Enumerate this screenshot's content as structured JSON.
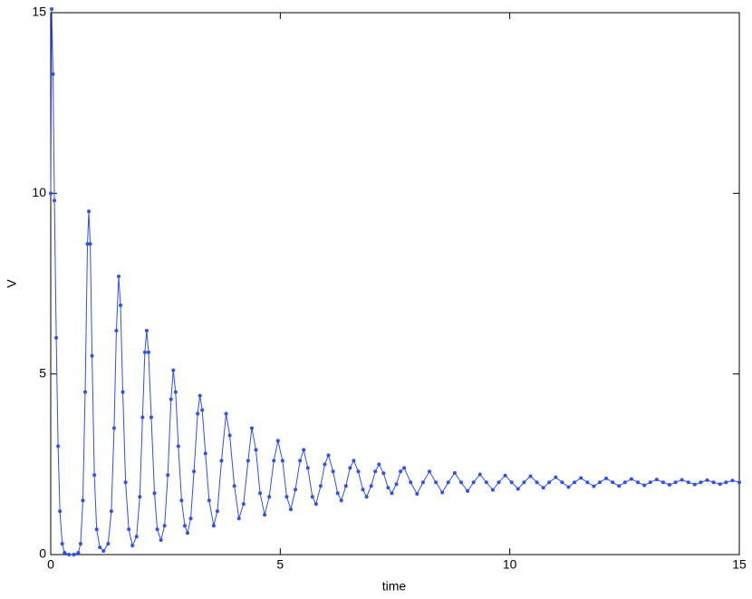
{
  "chart_data": {
    "type": "line",
    "xlabel": "time",
    "ylabel": "V",
    "color": "#2f4ff0",
    "x": [
      0,
      0.02,
      0.05,
      0.08,
      0.12,
      0.16,
      0.2,
      0.25,
      0.3,
      0.4,
      0.5,
      0.6,
      0.65,
      0.7,
      0.75,
      0.8,
      0.83,
      0.86,
      0.9,
      0.95,
      1.0,
      1.07,
      1.15,
      1.25,
      1.32,
      1.38,
      1.43,
      1.48,
      1.52,
      1.57,
      1.63,
      1.7,
      1.78,
      1.87,
      1.94,
      2.0,
      2.05,
      2.09,
      2.13,
      2.19,
      2.26,
      2.32,
      2.4,
      2.48,
      2.55,
      2.62,
      2.67,
      2.72,
      2.78,
      2.85,
      2.92,
      2.98,
      3.05,
      3.12,
      3.2,
      3.25,
      3.3,
      3.37,
      3.45,
      3.55,
      3.63,
      3.72,
      3.82,
      3.9,
      4.0,
      4.1,
      4.2,
      4.3,
      4.38,
      4.47,
      4.56,
      4.66,
      4.76,
      4.86,
      4.95,
      5.05,
      5.14,
      5.23,
      5.33,
      5.43,
      5.51,
      5.6,
      5.7,
      5.78,
      5.88,
      5.97,
      6.05,
      6.15,
      6.25,
      6.33,
      6.43,
      6.52,
      6.6,
      6.7,
      6.8,
      6.88,
      6.98,
      7.07,
      7.15,
      7.25,
      7.35,
      7.43,
      7.53,
      7.62,
      7.7,
      7.84,
      7.98,
      8.11,
      8.25,
      8.39,
      8.53,
      8.66,
      8.8,
      8.94,
      9.08,
      9.21,
      9.35,
      9.49,
      9.63,
      9.76,
      9.9,
      10.04,
      10.18,
      10.31,
      10.45,
      10.59,
      10.73,
      10.86,
      11.0,
      11.14,
      11.28,
      11.41,
      11.55,
      11.69,
      11.83,
      11.96,
      12.1,
      12.24,
      12.38,
      12.51,
      12.65,
      12.79,
      12.93,
      13.06,
      13.2,
      13.34,
      13.48,
      13.61,
      13.75,
      13.89,
      14.03,
      14.16,
      14.3,
      14.44,
      14.58,
      14.71,
      14.85,
      15
    ],
    "values": [
      10,
      15.1,
      13.3,
      9.8,
      6,
      3,
      1.2,
      0.3,
      0.05,
      0,
      0,
      0.05,
      0.3,
      1.5,
      4.5,
      8.6,
      9.5,
      8.6,
      5.5,
      2.2,
      0.7,
      0.2,
      0.1,
      0.3,
      1.2,
      3.5,
      6.2,
      7.7,
      6.9,
      4.5,
      2,
      0.7,
      0.25,
      0.5,
      1.6,
      3.8,
      5.6,
      6.2,
      5.6,
      3.8,
      1.7,
      0.7,
      0.4,
      0.8,
      2.2,
      4.3,
      5.1,
      4.5,
      3,
      1.5,
      0.8,
      0.6,
      1,
      2.3,
      3.9,
      4.4,
      4,
      2.8,
      1.5,
      0.8,
      1.2,
      2.6,
      3.9,
      3.3,
      1.9,
      1,
      1.4,
      2.6,
      3.5,
      2.9,
      1.7,
      1.1,
      1.6,
      2.6,
      3.15,
      2.6,
      1.6,
      1.25,
      1.8,
      2.6,
      2.9,
      2.4,
      1.6,
      1.4,
      1.9,
      2.5,
      2.75,
      2.3,
      1.7,
      1.5,
      1.9,
      2.4,
      2.6,
      2.3,
      1.8,
      1.6,
      1.9,
      2.3,
      2.5,
      2.25,
      1.85,
      1.7,
      1.95,
      2.3,
      2.4,
      2,
      1.68,
      2,
      2.3,
      2,
      1.72,
      2,
      2.26,
      2,
      1.76,
      2,
      2.22,
      2,
      1.79,
      2,
      2.19,
      2,
      1.82,
      2,
      2.17,
      2,
      1.85,
      2,
      2.14,
      2,
      1.87,
      2,
      2.12,
      2,
      1.89,
      2,
      2.11,
      2,
      1.9,
      2,
      2.09,
      2,
      1.92,
      2,
      2.08,
      2,
      1.93,
      2,
      2.07,
      2,
      1.94,
      2,
      2.06,
      2,
      1.95,
      2,
      2.05,
      2
    ],
    "xlim": [
      0,
      15
    ],
    "ylim": [
      0,
      15
    ],
    "xticks": [
      0,
      5,
      10,
      15
    ],
    "yticks": [
      0,
      5,
      10,
      15
    ]
  }
}
